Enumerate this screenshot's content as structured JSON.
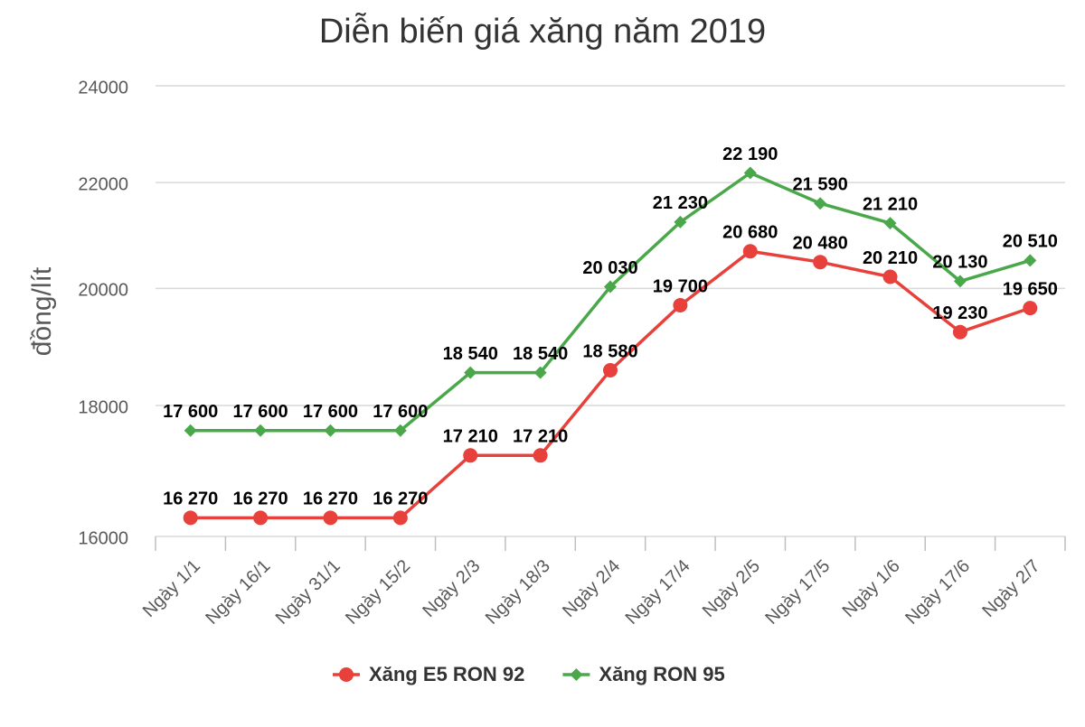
{
  "chart_data": {
    "type": "line",
    "title": "Diễn biến giá xăng năm 2019",
    "y_label": "đồng/lít",
    "categories": [
      "Ngày 1/1",
      "Ngày 16/1",
      "Ngày 31/1",
      "Ngày 15/2",
      "Ngày 2/3",
      "Ngày 18/3",
      "Ngày 2/4",
      "Ngày 17/4",
      "Ngày 2/5",
      "Ngày 17/5",
      "Ngày 1/6",
      "Ngày 17/6",
      "Ngày 2/7"
    ],
    "series": [
      {
        "name": "Xăng E5 RON 92",
        "color": "#e8403a",
        "marker": "circle",
        "values": [
          16270,
          16270,
          16270,
          16270,
          17210,
          17210,
          18580,
          19700,
          20680,
          20480,
          20210,
          19230,
          19650
        ],
        "value_labels": [
          "16 270",
          "16 270",
          "16 270",
          "16 270",
          "17 210",
          "17 210",
          "18 580",
          "19 700",
          "20 680",
          "20 480",
          "20 210",
          "19 230",
          "19 650"
        ]
      },
      {
        "name": "Xăng RON 95",
        "color": "#4aa84a",
        "marker": "diamond",
        "values": [
          17600,
          17600,
          17600,
          17600,
          18540,
          18540,
          20030,
          21230,
          22190,
          21590,
          21210,
          20130,
          20510
        ],
        "value_labels": [
          "17 600",
          "17 600",
          "17 600",
          "17 600",
          "18 540",
          "18 540",
          "20 030",
          "21 230",
          "22 190",
          "21 590",
          "21 210",
          "20 130",
          "20 510"
        ]
      }
    ],
    "ylim": [
      16000,
      24000
    ],
    "yticks": [
      16000,
      18000,
      20000,
      22000,
      24000
    ],
    "log": true,
    "grid": true,
    "legend": "bottom"
  }
}
